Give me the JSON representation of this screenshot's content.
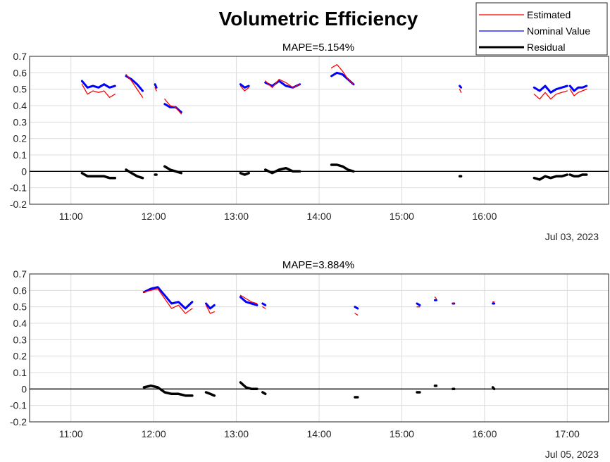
{
  "figure": {
    "title": "Volumetric Efficiency",
    "colors": {
      "estimated": "#ff0000",
      "nominal": "#0000ff",
      "residual": "#000000"
    }
  },
  "legend": {
    "placement": "top-right",
    "entries": [
      "Estimated",
      "Nominal Value",
      "Residual"
    ]
  },
  "chart_data": [
    {
      "type": "line",
      "title": "MAPE=5.154%",
      "date_label": "Jul 03, 2023",
      "xlim": [
        "10:30",
        "17:30"
      ],
      "ylim": [
        -0.2,
        0.7
      ],
      "grid": true,
      "x_ticks": [
        "11:00",
        "12:00",
        "13:00",
        "14:00",
        "15:00",
        "16:00"
      ],
      "y_ticks": [
        "-0.2",
        "-0.1",
        "0",
        "0.1",
        "0.2",
        "0.3",
        "0.4",
        "0.5",
        "0.6",
        "0.7"
      ],
      "segments": [
        {
          "x": [
            "11:08",
            "11:12",
            "11:16",
            "11:20",
            "11:24",
            "11:28",
            "11:32"
          ],
          "estimated": [
            0.53,
            0.47,
            0.49,
            0.48,
            0.49,
            0.45,
            0.47
          ],
          "nominal": [
            0.55,
            0.51,
            0.52,
            0.51,
            0.53,
            0.51,
            0.52
          ],
          "residual": [
            -0.01,
            -0.03,
            -0.03,
            -0.03,
            -0.03,
            -0.04,
            -0.04
          ]
        },
        {
          "x": [
            "11:40",
            "11:44",
            "11:48",
            "11:52"
          ],
          "estimated": [
            0.59,
            0.55,
            0.5,
            0.45
          ],
          "nominal": [
            0.58,
            0.56,
            0.53,
            0.49
          ],
          "residual": [
            0.01,
            -0.01,
            -0.03,
            -0.04
          ]
        },
        {
          "x": [
            "12:01",
            "12:02"
          ],
          "estimated": [
            0.51,
            0.49
          ],
          "nominal": [
            0.53,
            0.51
          ],
          "residual": [
            -0.02,
            -0.02
          ]
        },
        {
          "x": [
            "12:08",
            "12:12",
            "12:16",
            "12:20"
          ],
          "estimated": [
            0.44,
            0.4,
            0.39,
            0.35
          ],
          "nominal": [
            0.41,
            0.39,
            0.39,
            0.36
          ],
          "residual": [
            0.03,
            0.01,
            -0.0,
            -0.01
          ]
        },
        {
          "x": [
            "13:03",
            "13:06",
            "13:09"
          ],
          "estimated": [
            0.52,
            0.49,
            0.51
          ],
          "nominal": [
            0.53,
            0.51,
            0.52
          ],
          "residual": [
            -0.01,
            -0.02,
            -0.01
          ]
        },
        {
          "x": [
            "13:21",
            "13:26",
            "13:31",
            "13:36",
            "13:41",
            "13:46"
          ],
          "estimated": [
            0.55,
            0.51,
            0.56,
            0.54,
            0.51,
            0.53
          ],
          "nominal": [
            0.54,
            0.52,
            0.55,
            0.52,
            0.51,
            0.53
          ],
          "residual": [
            0.01,
            -0.01,
            0.01,
            0.02,
            0.0,
            0.0
          ]
        },
        {
          "x": [
            "14:09",
            "14:13",
            "14:17",
            "14:21",
            "14:25"
          ],
          "estimated": [
            0.63,
            0.65,
            0.61,
            0.56,
            0.53
          ],
          "nominal": [
            0.58,
            0.6,
            0.59,
            0.56,
            0.53
          ],
          "residual": [
            0.04,
            0.04,
            0.03,
            0.01,
            0.0
          ]
        },
        {
          "x": [
            "15:42",
            "15:43"
          ],
          "estimated": [
            0.5,
            0.48
          ],
          "nominal": [
            0.52,
            0.51
          ],
          "residual": [
            -0.03,
            -0.03
          ]
        },
        {
          "x": [
            "16:36",
            "16:40",
            "16:44",
            "16:48",
            "16:52",
            "16:56",
            "17:00"
          ],
          "estimated": [
            0.47,
            0.44,
            0.48,
            0.44,
            0.47,
            0.48,
            0.49
          ],
          "nominal": [
            0.51,
            0.49,
            0.52,
            0.48,
            0.5,
            0.51,
            0.52
          ],
          "residual": [
            -0.04,
            -0.05,
            -0.03,
            -0.04,
            -0.03,
            -0.03,
            -0.02
          ]
        },
        {
          "x": [
            "17:02",
            "17:05",
            "17:08",
            "17:11",
            "17:14"
          ],
          "estimated": [
            0.5,
            0.46,
            0.48,
            0.49,
            0.5
          ],
          "nominal": [
            0.52,
            0.49,
            0.51,
            0.51,
            0.52
          ],
          "residual": [
            -0.02,
            -0.03,
            -0.03,
            -0.02,
            -0.02
          ]
        }
      ]
    },
    {
      "type": "line",
      "title": "MAPE=3.884%",
      "date_label": "Jul 05, 2023",
      "xlim": [
        "10:30",
        "17:30"
      ],
      "ylim": [
        -0.2,
        0.7
      ],
      "grid": true,
      "x_ticks": [
        "11:00",
        "12:00",
        "13:00",
        "14:00",
        "15:00",
        "16:00",
        "17:00"
      ],
      "y_ticks": [
        "-0.2",
        "-0.1",
        "0",
        "0.1",
        "0.2",
        "0.3",
        "0.4",
        "0.5",
        "0.6",
        "0.7"
      ],
      "segments": [
        {
          "x": [
            "11:53",
            "11:58",
            "12:03",
            "12:08",
            "12:13",
            "12:18",
            "12:23",
            "12:28"
          ],
          "estimated": [
            0.59,
            0.6,
            0.61,
            0.55,
            0.49,
            0.51,
            0.46,
            0.49
          ],
          "nominal": [
            0.59,
            0.61,
            0.62,
            0.57,
            0.52,
            0.53,
            0.49,
            0.53
          ],
          "residual": [
            0.01,
            0.02,
            0.01,
            -0.02,
            -0.03,
            -0.03,
            -0.04,
            -0.04
          ]
        },
        {
          "x": [
            "12:38",
            "12:41",
            "12:44"
          ],
          "estimated": [
            0.51,
            0.46,
            0.47
          ],
          "nominal": [
            0.52,
            0.49,
            0.51
          ],
          "residual": [
            -0.02,
            -0.03,
            -0.04
          ]
        },
        {
          "x": [
            "13:03",
            "13:07",
            "13:11",
            "13:15"
          ],
          "estimated": [
            0.57,
            0.55,
            0.53,
            0.52
          ],
          "nominal": [
            0.56,
            0.53,
            0.52,
            0.51
          ],
          "residual": [
            0.04,
            0.01,
            0.0,
            -0.0
          ]
        },
        {
          "x": [
            "13:19",
            "13:21"
          ],
          "estimated": [
            0.5,
            0.49
          ],
          "nominal": [
            0.52,
            0.51
          ],
          "residual": [
            -0.02,
            -0.03
          ]
        },
        {
          "x": [
            "14:26",
            "14:28"
          ],
          "estimated": [
            0.46,
            0.45
          ],
          "nominal": [
            0.5,
            0.49
          ],
          "residual": [
            -0.05,
            -0.05
          ]
        },
        {
          "x": [
            "15:11",
            "15:13"
          ],
          "estimated": [
            0.5,
            0.5
          ],
          "nominal": [
            0.52,
            0.51
          ],
          "residual": [
            -0.02,
            -0.02
          ]
        },
        {
          "x": [
            "15:24",
            "15:25"
          ],
          "estimated": [
            0.56,
            0.55
          ],
          "nominal": [
            0.54,
            0.54
          ],
          "residual": [
            0.02,
            0.02
          ]
        },
        {
          "x": [
            "15:37",
            "15:38"
          ],
          "estimated": [
            0.52,
            0.52
          ],
          "nominal": [
            0.52,
            0.52
          ],
          "residual": [
            0.0,
            0.0
          ]
        },
        {
          "x": [
            "16:06",
            "16:07"
          ],
          "estimated": [
            0.53,
            0.53
          ],
          "nominal": [
            0.52,
            0.52
          ],
          "residual": [
            0.01,
            0.0
          ]
        }
      ]
    }
  ]
}
